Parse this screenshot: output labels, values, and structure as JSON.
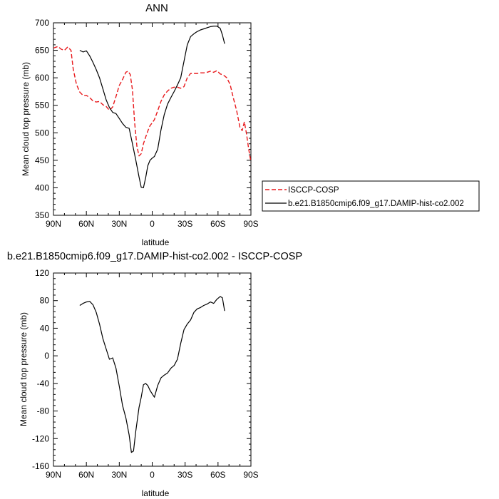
{
  "chart_data": [
    {
      "type": "line",
      "title": "ANN",
      "xlabel": "latitude",
      "ylabel": "Mean cloud top pressure (mb)",
      "xlim": [
        90,
        -90
      ],
      "ylim": [
        350,
        700
      ],
      "xticks": [
        90,
        60,
        30,
        0,
        -30,
        -60,
        -90
      ],
      "xtick_labels": [
        "90N",
        "60N",
        "30N",
        "0",
        "30S",
        "60S",
        "90S"
      ],
      "yticks": [
        350,
        400,
        450,
        500,
        550,
        600,
        650,
        700
      ],
      "ytick_labels": [
        "350",
        "400",
        "450",
        "500",
        "550",
        "600",
        "650",
        "700"
      ],
      "legend_position": "right",
      "series": [
        {
          "name": "ISCCP-COSP",
          "color": "#e8191c",
          "dash": "dashed",
          "x": [
            90,
            86,
            83,
            80,
            77,
            74,
            72,
            69,
            66,
            63,
            60,
            57,
            54,
            51,
            48,
            45,
            42,
            39,
            36,
            33,
            30,
            27,
            24,
            22,
            20,
            18,
            16,
            14,
            12,
            10,
            8,
            6,
            4,
            2,
            0,
            -2,
            -5,
            -8,
            -11,
            -14,
            -17,
            -20,
            -23,
            -26,
            -29,
            -32,
            -35,
            -38,
            -41,
            -44,
            -47,
            -50,
            -53,
            -56,
            -59,
            -62,
            -65,
            -68,
            -71,
            -74,
            -77,
            -80,
            -82,
            -84,
            -86,
            -88,
            -90
          ],
          "y": [
            654,
            657,
            652,
            650,
            656,
            650,
            616,
            588,
            574,
            568,
            568,
            564,
            558,
            556,
            557,
            551,
            548,
            541,
            547,
            566,
            586,
            597,
            610,
            612,
            606,
            578,
            518,
            476,
            458,
            462,
            480,
            492,
            503,
            513,
            518,
            524,
            540,
            557,
            569,
            576,
            581,
            583,
            583,
            581,
            584,
            600,
            608,
            608,
            608,
            609,
            609,
            610,
            612,
            610,
            613,
            607,
            605,
            600,
            588,
            563,
            540,
            510,
            504,
            520,
            498,
            470,
            447
          ]
        },
        {
          "name": "b.e21.B1850cmip6.f09_g17.DAMIP-hist-co2.002",
          "color": "#000000",
          "dash": "solid",
          "x": [
            66,
            63,
            60,
            57,
            54,
            51,
            48,
            45,
            42,
            39,
            36,
            33,
            30,
            27,
            24,
            21,
            18,
            15,
            12,
            10,
            8,
            6,
            4,
            2,
            0,
            -2,
            -5,
            -8,
            -11,
            -14,
            -17,
            -20,
            -23,
            -26,
            -29,
            -32,
            -35,
            -38,
            -41,
            -44,
            -47,
            -50,
            -53,
            -56,
            -59,
            -62,
            -64,
            -66
          ],
          "y": [
            650,
            647,
            649,
            640,
            628,
            615,
            600,
            580,
            560,
            546,
            537,
            535,
            526,
            517,
            510,
            508,
            480,
            451,
            420,
            401,
            400,
            418,
            440,
            450,
            454,
            457,
            470,
            505,
            533,
            552,
            564,
            575,
            587,
            600,
            630,
            660,
            675,
            680,
            684,
            687,
            689,
            691,
            693,
            694,
            694,
            690,
            678,
            662
          ]
        }
      ]
    },
    {
      "type": "line",
      "title": "b.e21.B1850cmip6.f09_g17.DAMIP-hist-co2.002 - ISCCP-COSP",
      "xlabel": "latitude",
      "ylabel": "Mean cloud top pressure (mb)",
      "xlim": [
        90,
        -90
      ],
      "ylim": [
        -160,
        120
      ],
      "xticks": [
        90,
        60,
        30,
        0,
        -30,
        -60,
        -90
      ],
      "xtick_labels": [
        "90N",
        "60N",
        "30N",
        "0",
        "30S",
        "60S",
        "90S"
      ],
      "yticks": [
        -160,
        -120,
        -80,
        -40,
        0,
        40,
        80,
        120
      ],
      "ytick_labels": [
        "-160",
        "-120",
        "-80",
        "-40",
        "0",
        "40",
        "80",
        "120"
      ],
      "series": [
        {
          "name": "",
          "color": "#000000",
          "dash": "solid",
          "x": [
            66,
            63,
            60,
            57,
            54,
            51,
            48,
            45,
            42,
            39,
            36,
            33,
            30,
            27,
            24,
            21,
            19,
            17,
            15,
            12,
            10,
            8,
            6,
            4,
            2,
            0,
            -2,
            -5,
            -8,
            -11,
            -14,
            -17,
            -20,
            -23,
            -26,
            -29,
            -32,
            -35,
            -38,
            -41,
            -44,
            -47,
            -50,
            -53,
            -56,
            -59,
            -62,
            -64,
            -66
          ],
          "y": [
            73,
            76,
            78,
            79,
            74,
            63,
            46,
            25,
            10,
            -5,
            -3,
            -18,
            -44,
            -72,
            -90,
            -115,
            -140,
            -138,
            -110,
            -75,
            -60,
            -42,
            -40,
            -43,
            -50,
            -55,
            -60,
            -43,
            -32,
            -28,
            -25,
            -18,
            -14,
            -5,
            18,
            38,
            46,
            52,
            63,
            68,
            70,
            73,
            75,
            78,
            76,
            82,
            86,
            84,
            65
          ]
        }
      ]
    }
  ]
}
